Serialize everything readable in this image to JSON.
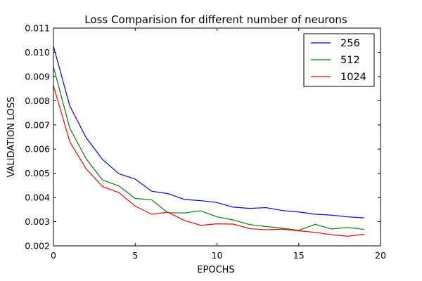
{
  "chart_data": {
    "type": "line",
    "title": "Loss Comparision for different number of neurons",
    "xlabel": "EPOCHS",
    "ylabel": "VALIDATION LOSS",
    "xlim": [
      0,
      20
    ],
    "ylim": [
      0.002,
      0.011
    ],
    "xticks": [
      "0",
      "5",
      "10",
      "15",
      "20"
    ],
    "yticks": [
      "0.002",
      "0.003",
      "0.004",
      "0.005",
      "0.006",
      "0.007",
      "0.008",
      "0.009",
      "0.010",
      "0.011"
    ],
    "grid": false,
    "legend_position": "top-right",
    "x": [
      0,
      1,
      2,
      3,
      4,
      5,
      6,
      7,
      8,
      9,
      10,
      11,
      12,
      13,
      14,
      15,
      16,
      17,
      18,
      19
    ],
    "series": [
      {
        "name": "256",
        "color": "#0000ff",
        "values": [
          0.01025,
          0.00778,
          0.00647,
          0.00557,
          0.00498,
          0.00476,
          0.00426,
          0.00416,
          0.00392,
          0.00387,
          0.00379,
          0.0036,
          0.00355,
          0.00358,
          0.00346,
          0.0034,
          0.00331,
          0.00327,
          0.0032,
          0.00316
        ]
      },
      {
        "name": "512",
        "color": "#008000",
        "values": [
          0.0094,
          0.00686,
          0.0056,
          0.00472,
          0.00448,
          0.00396,
          0.0039,
          0.00337,
          0.00336,
          0.00345,
          0.0032,
          0.00307,
          0.00288,
          0.0028,
          0.00273,
          0.00264,
          0.00289,
          0.0027,
          0.00276,
          0.00268
        ]
      },
      {
        "name": "1024",
        "color": "#ff0000",
        "values": [
          0.00862,
          0.0063,
          0.00518,
          0.00445,
          0.0042,
          0.00364,
          0.00331,
          0.00339,
          0.00305,
          0.00285,
          0.00291,
          0.0029,
          0.00271,
          0.00267,
          0.00269,
          0.00262,
          0.00256,
          0.00246,
          0.0024,
          0.00248
        ]
      }
    ]
  }
}
